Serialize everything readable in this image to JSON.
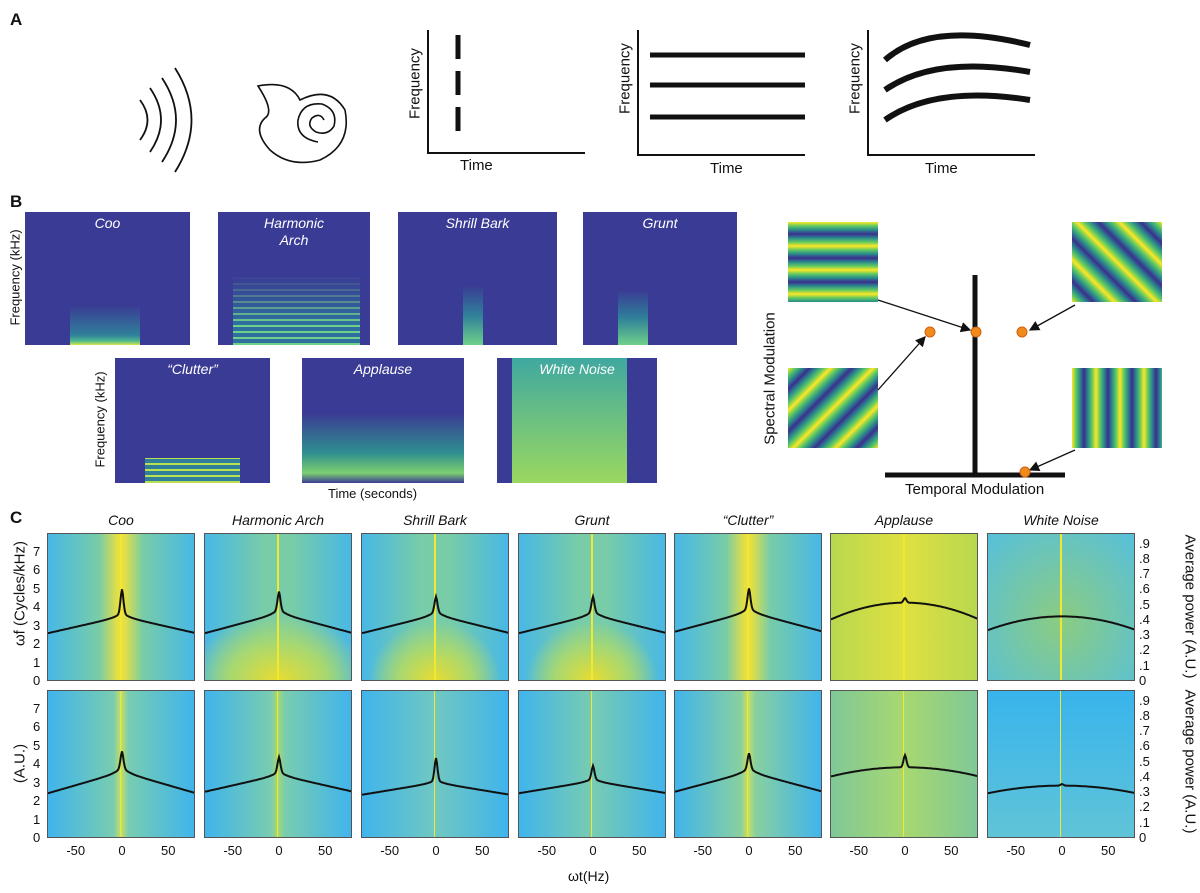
{
  "panel_labels": {
    "a": "A",
    "b": "B",
    "c": "C"
  },
  "panel_a": {
    "icons": [
      "sound-wave-icon",
      "cochlea-icon"
    ],
    "plots": [
      {
        "ylabel": "Frequency",
        "xlabel": "Time",
        "pattern": "vertical-dashed-line"
      },
      {
        "ylabel": "Frequency",
        "xlabel": "Time",
        "pattern": "three-horizontal-lines"
      },
      {
        "ylabel": "Frequency",
        "xlabel": "Time",
        "pattern": "three-arched-curves"
      }
    ]
  },
  "panel_b": {
    "spectrograms": [
      {
        "title": "Coo"
      },
      {
        "title": "Harmonic\nArch"
      },
      {
        "title": "Shrill Bark"
      },
      {
        "title": "Grunt"
      },
      {
        "title": "“Clutter”"
      },
      {
        "title": "Applause"
      },
      {
        "title": "White Noise"
      }
    ],
    "ylabel": "Frequency (kHz)",
    "xlabel": "Time (seconds)",
    "modulation": {
      "ylabel": "Spectral Modulation",
      "xlabel": "Temporal Modulation",
      "gratings": [
        "horizontal-stripes",
        "diagonal-stripes-down",
        "diagonal-stripes-up",
        "vertical-stripes"
      ],
      "dot_color": "#f08a1c"
    },
    "colors": {
      "background": "#3a3b94",
      "low": "#2a8a8c",
      "mid": "#5ec962",
      "high": "#fde725"
    }
  },
  "chart_data": {
    "type": "heatmap",
    "titles": [
      "Coo",
      "Harmonic Arch",
      "Shrill Bark",
      "Grunt",
      "“Clutter”",
      "Applause",
      "White Noise"
    ],
    "xlabel": "ωt(Hz)",
    "ylabel_top": "ωf (Cycles/kHz)",
    "ylabel_bottom": "(A.U.)",
    "ylabel_right": "Average power (A.U.)",
    "xlim": [
      -80,
      80
    ],
    "xticks": [
      "-50",
      "0",
      "50"
    ],
    "xtick_values": [
      -50,
      0,
      50
    ],
    "ylim_left": [
      0,
      8
    ],
    "yticks_left": [
      "0",
      "1",
      "2",
      "3",
      "4",
      "5",
      "6",
      "7"
    ],
    "ylim_right": [
      0,
      0.97
    ],
    "yticks_right": [
      "0",
      ".1",
      ".2",
      ".3",
      ".4",
      ".5",
      ".6",
      ".7",
      ".8",
      ".9"
    ],
    "overlay_curves": {
      "description_fields": [
        "edge",
        "center",
        "peak"
      ],
      "top": [
        [
          0.32,
          0.43,
          0.58
        ],
        [
          0.32,
          0.45,
          0.56
        ],
        [
          0.32,
          0.44,
          0.53
        ],
        [
          0.32,
          0.44,
          0.53
        ],
        [
          0.33,
          0.46,
          0.58
        ],
        [
          0.41,
          0.52,
          0.55
        ],
        [
          0.34,
          0.43,
          0.43
        ]
      ],
      "bottom": [
        [
          0.3,
          0.44,
          0.54
        ],
        [
          0.31,
          0.42,
          0.51
        ],
        [
          0.29,
          0.37,
          0.51
        ],
        [
          0.3,
          0.38,
          0.46
        ],
        [
          0.31,
          0.44,
          0.53
        ],
        [
          0.41,
          0.47,
          0.55
        ],
        [
          0.3,
          0.35,
          0.36
        ]
      ]
    },
    "colormap": [
      "#4ab8e8",
      "#7ccfa8",
      "#e8e040",
      "#e02020"
    ]
  }
}
